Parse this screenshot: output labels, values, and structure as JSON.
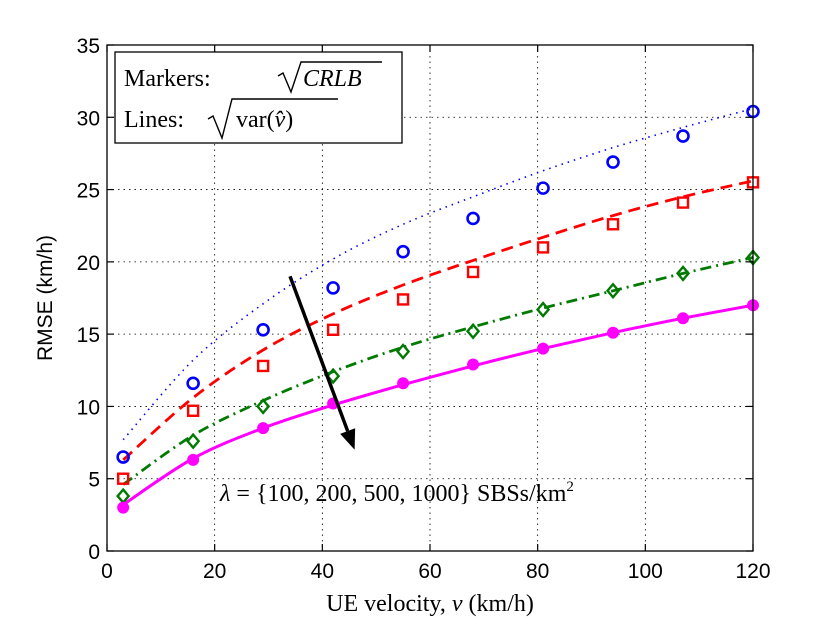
{
  "chart_data": {
    "type": "line",
    "title": "",
    "xlabel_text": "UE velocity, ",
    "xlabel_var": "v",
    "xlabel_unit": " (km/h)",
    "ylabel": "RMSE (km/h)",
    "xlim": [
      0,
      120
    ],
    "ylim": [
      0,
      35
    ],
    "xticks": [
      0,
      20,
      40,
      60,
      80,
      100,
      120
    ],
    "yticks": [
      0,
      5,
      10,
      15,
      20,
      25,
      30,
      35
    ],
    "grid": true,
    "legend": {
      "placement": "top-left",
      "markers_label": "Markers:",
      "markers_expr": "CRLB",
      "lines_label": "Lines:",
      "lines_expr": "var(",
      "lines_expr_var": "v̂",
      "lines_expr_close": ")"
    },
    "annotation": {
      "lambda": "λ",
      "set_text": " = {100, 200, 500, 1000} SBSs/km",
      "exponent": "2"
    },
    "x": [
      3,
      16,
      29,
      42,
      55,
      68,
      81,
      94,
      107,
      120
    ],
    "series": [
      {
        "name": "λ = 100 SBSs/km²",
        "color": "#0000ff",
        "line_style": "dotted",
        "marker": "circle",
        "crlb_values": [
          6.5,
          11.6,
          15.3,
          18.2,
          20.7,
          23.0,
          25.1,
          26.9,
          28.7,
          30.4
        ],
        "curve_at_x": [
          7.7,
          13.2,
          17.1,
          20.2,
          22.6,
          24.5,
          26.3,
          27.9,
          29.3,
          30.6
        ]
      },
      {
        "name": "λ = 200 SBSs/km²",
        "color": "#ff0000",
        "line_style": "dashed",
        "marker": "square",
        "crlb_values": [
          5.0,
          9.7,
          12.8,
          15.3,
          17.4,
          19.3,
          21.0,
          22.6,
          24.1,
          25.5
        ],
        "curve_at_x": [
          6.3,
          10.6,
          13.9,
          16.4,
          18.4,
          20.1,
          21.7,
          23.2,
          24.5,
          25.6
        ]
      },
      {
        "name": "λ = 500 SBSs/km²",
        "color": "#007a00",
        "line_style": "dash-dot",
        "marker": "diamond",
        "crlb_values": [
          3.8,
          7.6,
          10.0,
          12.1,
          13.8,
          15.2,
          16.7,
          18.0,
          19.2,
          20.3
        ],
        "curve_at_x": [
          4.6,
          8.0,
          10.4,
          12.4,
          14.1,
          15.5,
          16.8,
          18.0,
          19.2,
          20.3
        ]
      },
      {
        "name": "λ = 1000 SBSs/km²",
        "color": "#ff00ff",
        "line_style": "solid",
        "marker": "filled-circle",
        "crlb_values": [
          3.0,
          6.3,
          8.5,
          10.2,
          11.6,
          12.9,
          14.0,
          15.1,
          16.1,
          17.0
        ],
        "curve_at_x": [
          3.2,
          6.4,
          8.5,
          10.1,
          11.5,
          12.8,
          14.0,
          15.1,
          16.1,
          17.0
        ]
      }
    ],
    "arrow": {
      "from": [
        34,
        19
      ],
      "to": [
        46,
        7
      ]
    }
  }
}
